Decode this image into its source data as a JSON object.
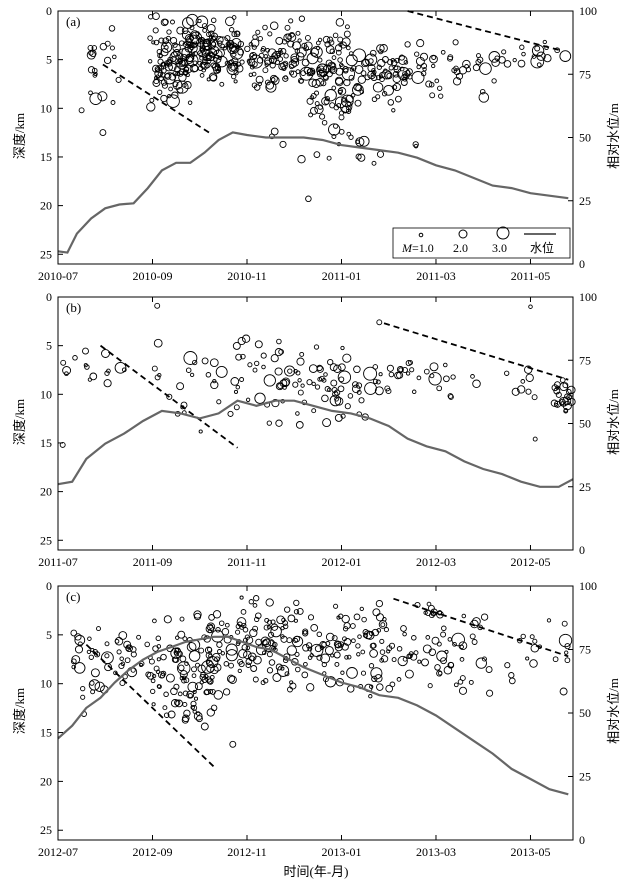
{
  "figure": {
    "xlabel": "时间(年-月)",
    "ylabel_left": "深度/km",
    "ylabel_right": "相对水位/m",
    "legend": {
      "m_prefix": "M",
      "labels": [
        "=1.0",
        "2.0",
        "3.0"
      ],
      "line_label": "水位"
    }
  },
  "chart_data": [
    {
      "type": "scatter",
      "panel_label": "(a)",
      "xticks": [
        "2010-07",
        "2010-09",
        "2010-11",
        "2011-01",
        "2011-03",
        "2011-05"
      ],
      "depth_range": [
        0,
        26
      ],
      "depth_ticks": [
        0,
        5,
        10,
        15,
        20,
        25
      ],
      "water_range": [
        0,
        100
      ],
      "water_ticks": [
        0,
        25,
        50,
        75,
        100
      ],
      "water_level_series": {
        "name": "水位",
        "months": [
          0,
          0.2,
          0.4,
          0.7,
          1.0,
          1.3,
          1.6,
          1.9,
          2.2,
          2.5,
          2.8,
          3.1,
          3.4,
          3.7,
          4.0,
          4.4,
          4.8,
          5.2,
          5.6,
          6.0,
          6.4,
          6.8,
          7.2,
          7.6,
          8.0,
          8.4,
          8.8,
          9.2,
          9.6,
          10.0,
          10.4,
          10.8
        ],
        "water_m": [
          5,
          4.5,
          12,
          18,
          22,
          23.5,
          24,
          30,
          37,
          40,
          40,
          44,
          49,
          52,
          51,
          50,
          50,
          50,
          49,
          47,
          46,
          45,
          44,
          42,
          39,
          37,
          34,
          31,
          30,
          28,
          27,
          26
        ]
      },
      "trend_lines": [
        {
          "months": [
            0.95,
            3.2
          ],
          "depth_km": [
            5.5,
            12.5
          ]
        },
        {
          "months": [
            7.4,
            10.6
          ],
          "depth_km": [
            0,
            4.0
          ]
        }
      ],
      "event_seed": 11
    },
    {
      "type": "scatter",
      "panel_label": "(b)",
      "xticks": [
        "2011-07",
        "2011-09",
        "2011-11",
        "2012-01",
        "2012-03",
        "2012-05"
      ],
      "depth_range": [
        0,
        26
      ],
      "depth_ticks": [
        0,
        5,
        10,
        15,
        20,
        25
      ],
      "water_range": [
        0,
        100
      ],
      "water_ticks": [
        0,
        25,
        50,
        75,
        100
      ],
      "water_level_series": {
        "name": "水位",
        "months": [
          0,
          0.3,
          0.6,
          1.0,
          1.4,
          1.8,
          2.2,
          2.6,
          3.0,
          3.4,
          3.8,
          4.2,
          4.6,
          5.0,
          5.4,
          5.8,
          6.2,
          6.6,
          7.0,
          7.4,
          7.8,
          8.2,
          8.6,
          9.0,
          9.4,
          9.8,
          10.2,
          10.6,
          10.9
        ],
        "water_m": [
          26,
          27,
          36,
          42,
          46,
          51,
          55,
          54,
          52,
          54,
          59,
          57,
          59,
          59,
          57,
          55,
          54,
          52,
          49,
          44,
          41,
          39,
          35,
          32,
          30,
          27,
          25,
          25,
          28
        ]
      },
      "trend_lines": [
        {
          "months": [
            0.9,
            3.8
          ],
          "depth_km": [
            5,
            15.5
          ]
        },
        {
          "months": [
            6.9,
            10.8
          ],
          "depth_km": [
            2.7,
            8.5
          ]
        }
      ],
      "event_seed": 23
    },
    {
      "type": "scatter",
      "panel_label": "(c)",
      "xticks": [
        "2012-07",
        "2012-09",
        "2012-11",
        "2013-01",
        "2013-03",
        "2013-05"
      ],
      "depth_range": [
        0,
        26
      ],
      "depth_ticks": [
        0,
        5,
        10,
        15,
        20,
        25
      ],
      "water_range": [
        0,
        100
      ],
      "water_ticks": [
        0,
        25,
        50,
        75,
        100
      ],
      "water_level_series": {
        "name": "水位",
        "months": [
          0,
          0.3,
          0.6,
          0.9,
          1.2,
          1.5,
          1.8,
          2.1,
          2.4,
          2.7,
          3.0,
          3.3,
          3.6,
          3.9,
          4.2,
          4.5,
          4.8,
          5.2,
          5.6,
          6.0,
          6.4,
          6.8,
          7.2,
          7.6,
          8.0,
          8.4,
          8.8,
          9.2,
          9.6,
          10.0,
          10.4,
          10.8
        ],
        "water_m": [
          40,
          45,
          52,
          56,
          62,
          67,
          71,
          74,
          76,
          78,
          79,
          80,
          80,
          78,
          76,
          75,
          72,
          68,
          65,
          62,
          60,
          57,
          56,
          53,
          49,
          44,
          39,
          34,
          28,
          24,
          20,
          18
        ]
      },
      "trend_lines": [
        {
          "months": [
            0.6,
            3.3
          ],
          "depth_km": [
            6,
            18.5
          ]
        },
        {
          "months": [
            7.1,
            10.8
          ],
          "depth_km": [
            1.3,
            7.2
          ]
        }
      ],
      "event_seed": 37
    }
  ]
}
